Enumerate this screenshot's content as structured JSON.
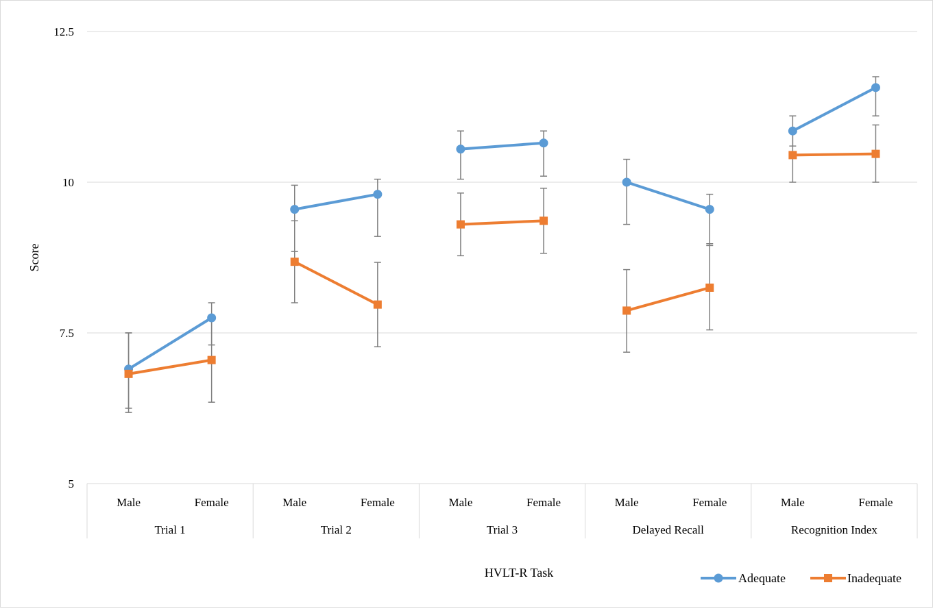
{
  "chart_data": {
    "type": "line",
    "ylabel": "Score",
    "xlabel": "HVLT-R Task",
    "ylim": [
      5,
      12.5
    ],
    "yticks": [
      "5",
      "7.5",
      "10",
      "12.5"
    ],
    "grid": true,
    "legend_position": "bottom-right",
    "groups": [
      {
        "label": "Trial 1",
        "categories": [
          "Male",
          "Female"
        ]
      },
      {
        "label": "Trial 2",
        "categories": [
          "Male",
          "Female"
        ]
      },
      {
        "label": "Trial 3",
        "categories": [
          "Male",
          "Female"
        ]
      },
      {
        "label": "Delayed Recall",
        "categories": [
          "Male",
          "Female"
        ]
      },
      {
        "label": "Recognition Index",
        "categories": [
          "Male",
          "Female"
        ]
      }
    ],
    "series": [
      {
        "name": "Adequate",
        "color": "#5B9BD5",
        "marker": "circle",
        "values": [
          [
            6.9,
            7.75
          ],
          [
            9.55,
            9.8
          ],
          [
            10.55,
            10.65
          ],
          [
            10.0,
            9.55
          ],
          [
            10.85,
            11.57
          ]
        ],
        "error_low": [
          [
            6.25,
            7.3
          ],
          [
            8.85,
            9.1
          ],
          [
            10.05,
            10.1
          ],
          [
            9.3,
            8.95
          ],
          [
            10.6,
            11.1
          ]
        ],
        "error_high": [
          [
            7.5,
            8.0
          ],
          [
            9.95,
            10.05
          ],
          [
            10.85,
            10.85
          ],
          [
            10.38,
            9.8
          ],
          [
            11.1,
            11.75
          ]
        ]
      },
      {
        "name": "Inadequate",
        "color": "#ED7D31",
        "marker": "square",
        "values": [
          [
            6.82,
            7.05
          ],
          [
            8.68,
            7.97
          ],
          [
            9.3,
            9.36
          ],
          [
            7.87,
            8.25
          ],
          [
            10.45,
            10.47
          ]
        ],
        "error_low": [
          [
            6.18,
            6.35
          ],
          [
            8.0,
            7.27
          ],
          [
            8.78,
            8.82
          ],
          [
            7.18,
            7.55
          ],
          [
            10.0,
            10.0
          ]
        ],
        "error_high": [
          [
            7.5,
            7.75
          ],
          [
            9.36,
            8.67
          ],
          [
            9.82,
            9.9
          ],
          [
            8.55,
            8.98
          ],
          [
            10.85,
            10.95
          ]
        ]
      }
    ]
  }
}
